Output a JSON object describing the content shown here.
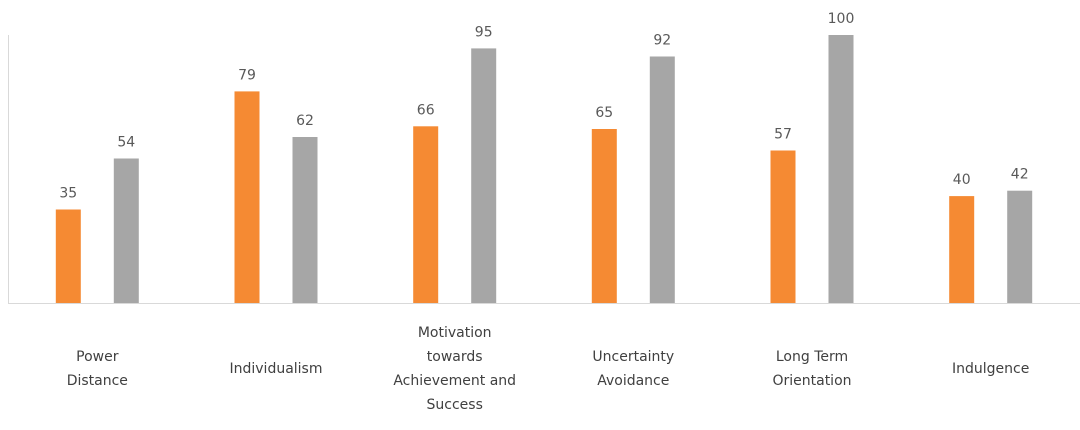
{
  "chart_data": {
    "type": "bar",
    "categories": [
      [
        "Power",
        "Distance"
      ],
      [
        "Individualism"
      ],
      [
        "Motivation",
        "towards",
        "Achievement and",
        "Success"
      ],
      [
        "Uncertainty",
        "Avoidance"
      ],
      [
        "Long Term",
        "Orientation"
      ],
      [
        "Indulgence"
      ]
    ],
    "series": [
      {
        "values": [
          35,
          79,
          66,
          65,
          57,
          40
        ],
        "color": "#F58A33"
      },
      {
        "values": [
          54,
          62,
          95,
          92,
          100,
          42
        ],
        "color": "#A6A6A6"
      }
    ],
    "ylim": [
      0,
      100
    ],
    "grid": false,
    "legend": "none",
    "show_data_labels": true,
    "axis_color": "#D9D9D9",
    "label_color": "#595959"
  }
}
